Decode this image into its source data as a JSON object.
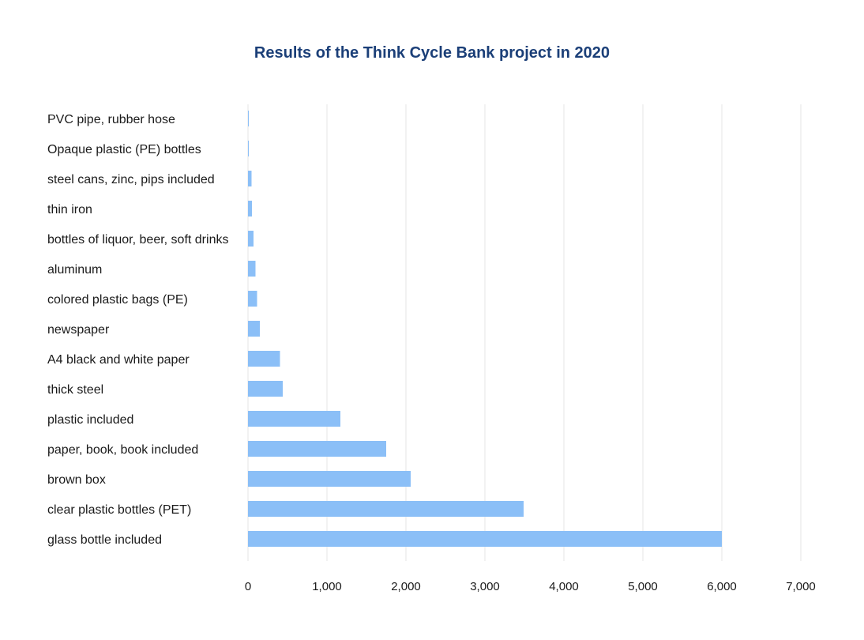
{
  "chart_data": {
    "type": "bar",
    "orientation": "horizontal",
    "title": "Results of the Think Cycle Bank project in 2020",
    "xlabel": "",
    "ylabel": "",
    "categories": [
      "PVC pipe, rubber hose",
      "Opaque plastic (PE) bottles",
      "steel cans, zinc, pips included",
      "thin iron",
      "bottles of liquor, beer, soft drinks",
      "aluminum",
      "colored plastic bags (PE)",
      "newspaper",
      "A4 black and white paper",
      "thick steel",
      "plastic included",
      "paper, book, book included",
      "brown box",
      "clear plastic bottles (PET)",
      "glass bottle included"
    ],
    "values": [
      5,
      10,
      45,
      50,
      70,
      95,
      115,
      150,
      405,
      440,
      1170,
      1750,
      2060,
      3490,
      6000
    ],
    "xlim": [
      0,
      7000
    ],
    "xticks": [
      "0",
      "1,000",
      "2,000",
      "3,000",
      "4,000",
      "5,000",
      "6,000",
      "7,000"
    ],
    "tick_values": [
      0,
      1000,
      2000,
      3000,
      4000,
      5000,
      6000,
      7000
    ],
    "grid": true,
    "bar_color": "#8bbff7",
    "title_color": "#1b3f78",
    "grid_color": "#e6e6e6"
  }
}
